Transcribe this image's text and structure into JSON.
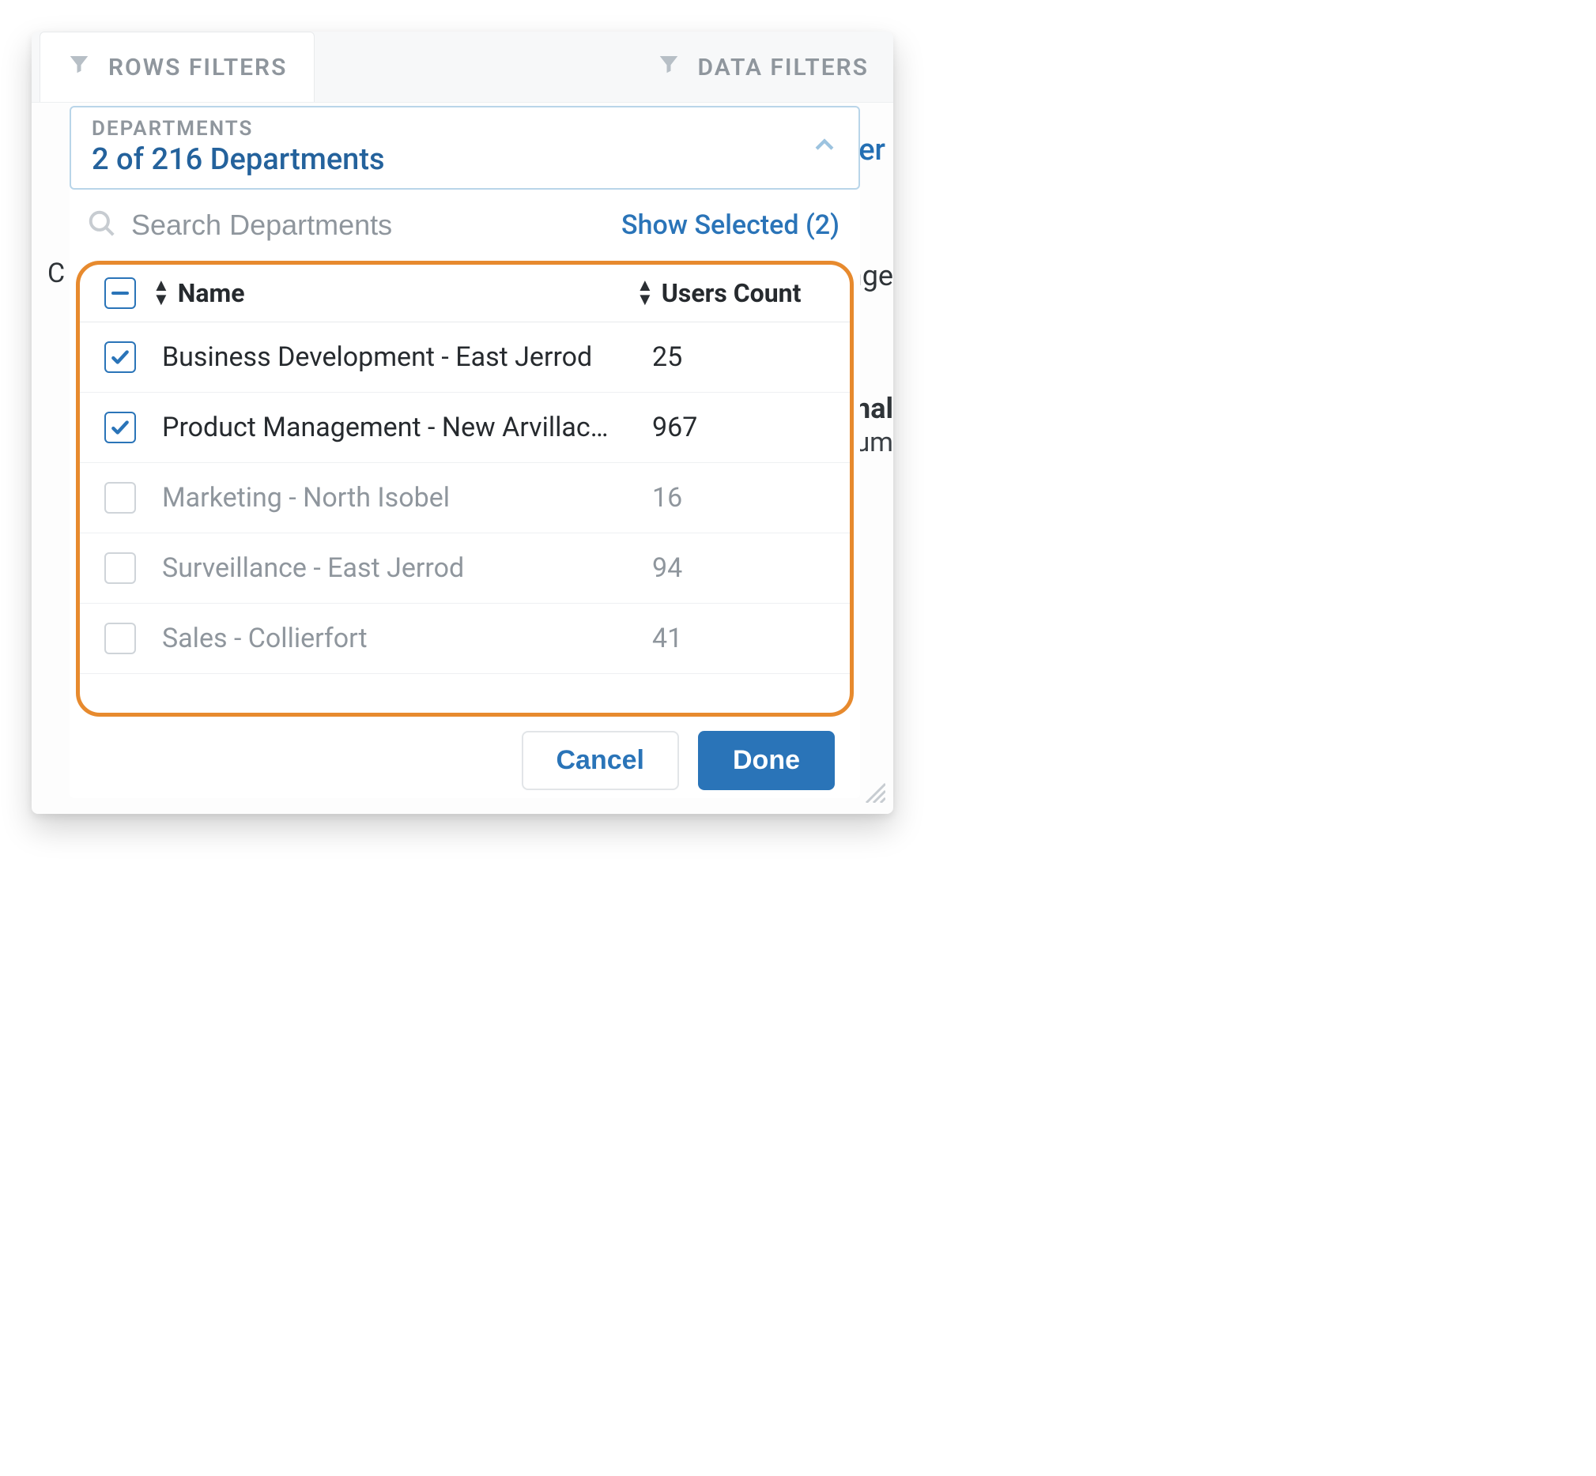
{
  "tabs": {
    "rows_filters": "ROWS FILTERS",
    "data_filters": "DATA FILTERS"
  },
  "background_fragments": {
    "c": "C",
    "lter": "lter",
    "nange": "nange",
    "ernal": "ernal",
    "sum": "Sum"
  },
  "header": {
    "label": "DEPARTMENTS",
    "count_text": "2 of 216 Departments"
  },
  "search": {
    "placeholder": "Search Departments",
    "show_selected": "Show Selected (2)"
  },
  "table": {
    "columns": {
      "name": "Name",
      "users_count": "Users Count"
    },
    "rows": [
      {
        "selected": true,
        "name": "Business Development - East Jerrod",
        "count": "25"
      },
      {
        "selected": true,
        "name": "Product Management - New Arvillac…",
        "count": "967"
      },
      {
        "selected": false,
        "name": "Marketing - North Isobel",
        "count": "16"
      },
      {
        "selected": false,
        "name": "Surveillance - East Jerrod",
        "count": "94"
      },
      {
        "selected": false,
        "name": "Sales - Collierfort",
        "count": "41"
      }
    ]
  },
  "buttons": {
    "cancel": "Cancel",
    "done": "Done"
  },
  "colors": {
    "accent": "#2a74b8",
    "highlight_border": "#e78a2e",
    "muted_text": "#8f969d",
    "text": "#262a2e",
    "header_border": "#b9d5e9"
  }
}
